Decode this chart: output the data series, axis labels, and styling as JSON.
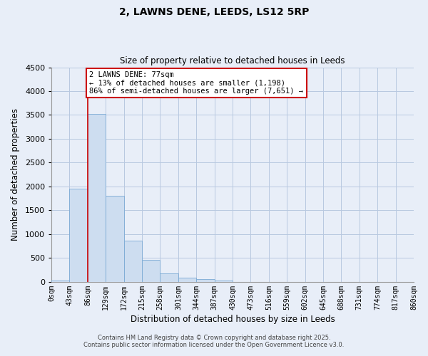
{
  "title": "2, LAWNS DENE, LEEDS, LS12 5RP",
  "subtitle": "Size of property relative to detached houses in Leeds",
  "xlabel": "Distribution of detached houses by size in Leeds",
  "ylabel": "Number of detached properties",
  "bar_values": [
    30,
    1950,
    3520,
    1800,
    860,
    460,
    170,
    90,
    50,
    20,
    0,
    0,
    0,
    0,
    0,
    0,
    0,
    0,
    0,
    0
  ],
  "bar_labels": [
    "0sqm",
    "43sqm",
    "86sqm",
    "129sqm",
    "172sqm",
    "215sqm",
    "258sqm",
    "301sqm",
    "344sqm",
    "387sqm",
    "430sqm",
    "473sqm",
    "516sqm",
    "559sqm",
    "602sqm",
    "645sqm",
    "688sqm",
    "731sqm",
    "774sqm",
    "817sqm",
    "860sqm"
  ],
  "bar_color": "#cdddf0",
  "bar_edge_color": "#7baad4",
  "ylim": [
    0,
    4500
  ],
  "yticks": [
    0,
    500,
    1000,
    1500,
    2000,
    2500,
    3000,
    3500,
    4000,
    4500
  ],
  "property_line_x": 2,
  "annotation_title": "2 LAWNS DENE: 77sqm",
  "annotation_line1": "← 13% of detached houses are smaller (1,198)",
  "annotation_line2": "86% of semi-detached houses are larger (7,651) →",
  "vline_color": "#cc0000",
  "annotation_box_edge": "#cc0000",
  "footer1": "Contains HM Land Registry data © Crown copyright and database right 2025.",
  "footer2": "Contains public sector information licensed under the Open Government Licence v3.0.",
  "background_color": "#e8eef8",
  "plot_bg_color": "#e8eef8",
  "grid_color": "#b8c8e0",
  "spine_color": "#999999"
}
